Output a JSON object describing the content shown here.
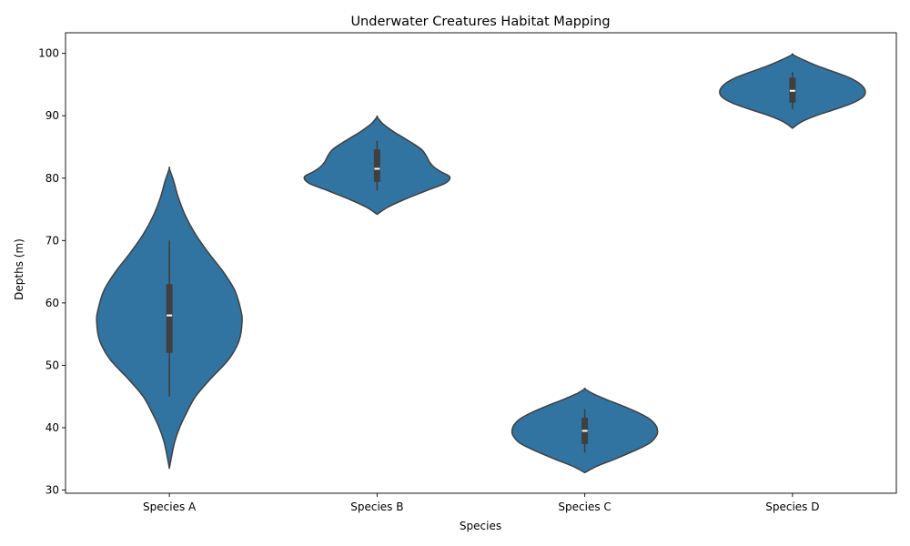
{
  "chart_data": {
    "type": "violin",
    "title": "Underwater Creatures Habitat Mapping",
    "xlabel": "Species",
    "ylabel": "Depths (m)",
    "ylim": [
      29.5,
      103.3
    ],
    "yticks": [
      30,
      40,
      50,
      60,
      70,
      80,
      90,
      100
    ],
    "categories": [
      "Species A",
      "Species B",
      "Species C",
      "Species D"
    ],
    "color": "#3274a1",
    "edge_color": "#3f3f3f",
    "grid": false,
    "violins": [
      {
        "category": "Species A",
        "min": 45,
        "q1": 52,
        "median": 58,
        "q3": 63,
        "max": 70,
        "kde_min": 33.5,
        "kde_max": 81.5,
        "density": [
          [
            33.5,
            0.0
          ],
          [
            36,
            0.04
          ],
          [
            38,
            0.08
          ],
          [
            40,
            0.14
          ],
          [
            42,
            0.22
          ],
          [
            45,
            0.36
          ],
          [
            48,
            0.58
          ],
          [
            51,
            0.82
          ],
          [
            54,
            0.96
          ],
          [
            57,
            1.0
          ],
          [
            59,
            0.98
          ],
          [
            62,
            0.9
          ],
          [
            65,
            0.74
          ],
          [
            68,
            0.54
          ],
          [
            71,
            0.36
          ],
          [
            74,
            0.22
          ],
          [
            77,
            0.12
          ],
          [
            79.5,
            0.06
          ],
          [
            81.5,
            0.0
          ]
        ]
      },
      {
        "category": "Species B",
        "min": 78,
        "q1": 79.4,
        "median": 81.5,
        "q3": 84.6,
        "max": 86,
        "kde_min": 74.2,
        "kde_max": 89.8,
        "density": [
          [
            74.2,
            0.0
          ],
          [
            75.3,
            0.14
          ],
          [
            76.5,
            0.36
          ],
          [
            78,
            0.68
          ],
          [
            79.2,
            0.94
          ],
          [
            80.2,
            1.0
          ],
          [
            81,
            0.88
          ],
          [
            81.8,
            0.78
          ],
          [
            82.6,
            0.72
          ],
          [
            83.5,
            0.68
          ],
          [
            84.5,
            0.62
          ],
          [
            85.5,
            0.5
          ],
          [
            86.5,
            0.36
          ],
          [
            87.5,
            0.22
          ],
          [
            88.7,
            0.08
          ],
          [
            89.8,
            0.0
          ]
        ]
      },
      {
        "category": "Species C",
        "min": 36,
        "q1": 37.4,
        "median": 39.5,
        "q3": 41.6,
        "max": 43,
        "kde_min": 32.8,
        "kde_max": 46.2,
        "density": [
          [
            32.8,
            0.0
          ],
          [
            33.8,
            0.16
          ],
          [
            35,
            0.42
          ],
          [
            36.4,
            0.7
          ],
          [
            37.6,
            0.9
          ],
          [
            38.8,
            0.99
          ],
          [
            39.6,
            1.0
          ],
          [
            40.5,
            0.97
          ],
          [
            41.5,
            0.88
          ],
          [
            42.5,
            0.72
          ],
          [
            43.5,
            0.52
          ],
          [
            44.5,
            0.3
          ],
          [
            45.4,
            0.12
          ],
          [
            46.2,
            0.0
          ]
        ]
      },
      {
        "category": "Species D",
        "min": 91,
        "q1": 92.1,
        "median": 94,
        "q3": 96.1,
        "max": 97,
        "kde_min": 88,
        "kde_max": 99.8,
        "density": [
          [
            88.0,
            0.0
          ],
          [
            89,
            0.12
          ],
          [
            90,
            0.32
          ],
          [
            91,
            0.58
          ],
          [
            92,
            0.82
          ],
          [
            93,
            0.97
          ],
          [
            94,
            1.0
          ],
          [
            95,
            0.94
          ],
          [
            96,
            0.8
          ],
          [
            97,
            0.58
          ],
          [
            98,
            0.34
          ],
          [
            99,
            0.14
          ],
          [
            99.8,
            0.0
          ]
        ]
      }
    ]
  }
}
